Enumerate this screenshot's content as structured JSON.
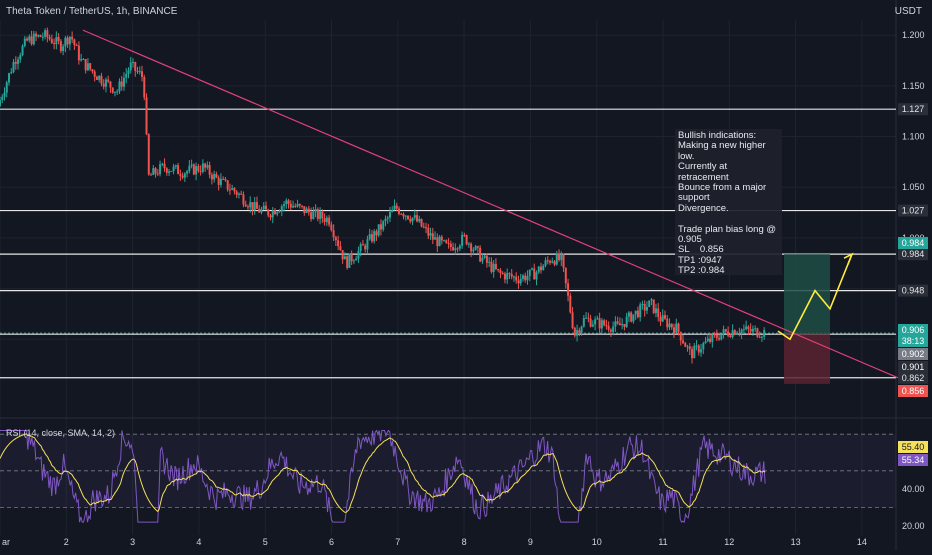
{
  "header": {
    "title": "Theta Token / TetherUS, 1h, BINANCE",
    "currency": "USDT"
  },
  "annotation": {
    "text": "Bullish indications:\nMaking a new higher low.\nCurrently at retracement\nBounce from a major support\nDivergence.\n\nTrade plan bias long @ 0.905\nSL    0.856\nTP1 :0947\nTP2 :0.984"
  },
  "rsi": {
    "title": "RSI (14, close, SMA, 14, 2)"
  },
  "colors": {
    "background": "#131722",
    "bull": "#26a69a",
    "bear": "#ef5350",
    "trendline": "#e0407a",
    "rsi_line": "#7e57c2",
    "rsi_ma": "#f5e05a",
    "projection": "#ffeb3b",
    "profit_zone": "#1f4d45",
    "loss_zone": "#5a2230"
  },
  "chart_data": [
    {
      "type": "candlestick",
      "ylim": [
        0.845,
        1.215
      ],
      "x_ticks": [
        "ar",
        "2",
        "3",
        "4",
        "5",
        "6",
        "7",
        "8",
        "9",
        "10",
        "11",
        "12",
        "13",
        "14"
      ],
      "y_ticks": [
        "1.200",
        "1.150",
        "1.100",
        "1.050",
        "1.000",
        "0.950",
        "0.900"
      ],
      "series": [
        {
          "kind": "price",
          "points": [
            [
              1.0,
              1.13
            ],
            [
              1.25,
              1.175
            ],
            [
              1.45,
              1.195
            ],
            [
              1.7,
              1.2
            ],
            [
              1.95,
              1.19
            ],
            [
              2.1,
              1.2
            ],
            [
              2.25,
              1.175
            ],
            [
              2.5,
              1.16
            ],
            [
              2.8,
              1.145
            ],
            [
              3.0,
              1.17
            ],
            [
              3.2,
              1.158
            ],
            [
              3.27,
              1.06
            ],
            [
              3.5,
              1.07
            ],
            [
              3.8,
              1.065
            ],
            [
              4.1,
              1.07
            ],
            [
              4.3,
              1.058
            ],
            [
              4.6,
              1.045
            ],
            [
              4.9,
              1.028
            ],
            [
              5.1,
              1.025
            ],
            [
              5.35,
              1.035
            ],
            [
              5.7,
              1.025
            ],
            [
              6.0,
              1.018
            ],
            [
              6.25,
              0.975
            ],
            [
              6.5,
              0.99
            ],
            [
              6.8,
              1.012
            ],
            [
              7.0,
              1.03
            ],
            [
              7.3,
              1.018
            ],
            [
              7.55,
              1.0
            ],
            [
              7.8,
              0.99
            ],
            [
              8.05,
              1.0
            ],
            [
              8.3,
              0.98
            ],
            [
              8.55,
              0.965
            ],
            [
              8.85,
              0.96
            ],
            [
              9.1,
              0.965
            ],
            [
              9.35,
              0.98
            ],
            [
              9.5,
              0.978
            ],
            [
              9.7,
              0.905
            ],
            [
              9.85,
              0.92
            ],
            [
              10.1,
              0.915
            ],
            [
              10.35,
              0.912
            ],
            [
              10.6,
              0.925
            ],
            [
              10.85,
              0.935
            ],
            [
              11.0,
              0.92
            ],
            [
              11.25,
              0.91
            ],
            [
              11.45,
              0.885
            ],
            [
              11.65,
              0.895
            ],
            [
              11.9,
              0.905
            ],
            [
              12.15,
              0.91
            ],
            [
              12.35,
              0.908
            ],
            [
              12.55,
              0.907
            ]
          ]
        },
        {
          "kind": "rsi",
          "ylim": [
            15,
            75
          ],
          "y_ticks": [
            "40.00",
            "20.00"
          ],
          "current_value": "55.34",
          "ma_value": "55.40"
        }
      ],
      "horizontal_levels": [
        {
          "price": 1.127,
          "label": "1.127"
        },
        {
          "price": 1.027,
          "label": "1.027"
        },
        {
          "price": 0.984,
          "label": "0.984"
        },
        {
          "price": 0.948,
          "label": "0.948"
        },
        {
          "price": 0.905,
          "label": ""
        },
        {
          "price": 0.862,
          "label": "0.862"
        }
      ],
      "price_tags": [
        {
          "label": "0.984",
          "color": "#26a69a"
        },
        {
          "label": "0.906",
          "color": "#26a69a"
        },
        {
          "label": "38:13",
          "color": "#26a69a"
        },
        {
          "label": "0.902",
          "color": "#787b86"
        },
        {
          "label": "0.901",
          "color": "#2a2e39"
        },
        {
          "label": "0.856",
          "color": "#ef5350"
        }
      ]
    }
  ]
}
